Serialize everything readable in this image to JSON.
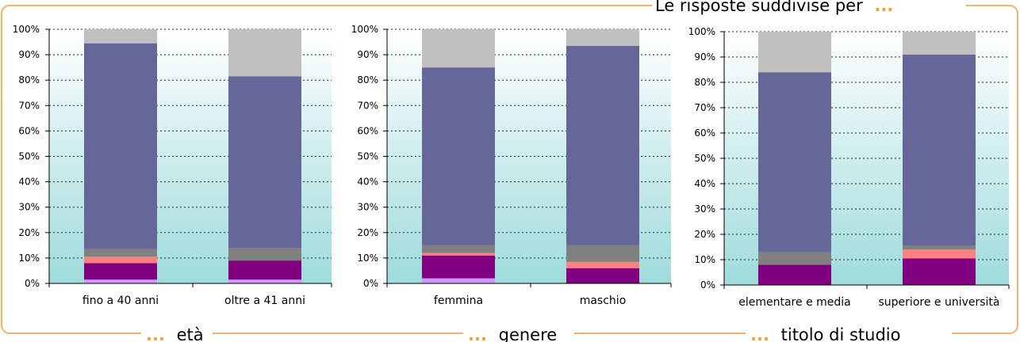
{
  "header": {
    "title_prefix": "Le risposte suddivise per",
    "title_dots": "..."
  },
  "footer": [
    {
      "dots": "...",
      "label": "età"
    },
    {
      "dots": "...",
      "label": "genere"
    },
    {
      "dots": "...",
      "label": "titolo di studio"
    }
  ],
  "colors": {
    "frame": "#f2b46a",
    "dots": "#f2a33a",
    "grid": "#222222",
    "plot_top": "#ffffff",
    "plot_bottom": "#9fdbdc"
  },
  "chart_data": [
    {
      "type": "bar",
      "stacked": true,
      "categories": [
        "fino a 40 anni",
        "oltre a 41 anni"
      ],
      "ylim": [
        0,
        100
      ],
      "yticks": [
        "0%",
        "10%",
        "20%",
        "30%",
        "40%",
        "50%",
        "60%",
        "70%",
        "80%",
        "90%",
        "100%"
      ],
      "grid": true,
      "series": [
        {
          "color": "#cc99ff",
          "values": [
            1.5,
            1.5
          ]
        },
        {
          "color": "#800080",
          "values": [
            6.5,
            7.5
          ]
        },
        {
          "color": "#ff8080",
          "values": [
            2.5,
            0
          ]
        },
        {
          "color": "#808080",
          "values": [
            3,
            5
          ]
        },
        {
          "color": "#666699",
          "values": [
            81,
            67.5
          ]
        },
        {
          "color": "#c0c0c0",
          "values": [
            5.5,
            18.5
          ]
        }
      ]
    },
    {
      "type": "bar",
      "stacked": true,
      "categories": [
        "femmina",
        "maschio"
      ],
      "ylim": [
        0,
        100
      ],
      "yticks": [
        "0%",
        "10%",
        "20%",
        "30%",
        "40%",
        "50%",
        "60%",
        "70%",
        "80%",
        "90%",
        "100%"
      ],
      "grid": true,
      "series": [
        {
          "color": "#cc99ff",
          "values": [
            2,
            0
          ]
        },
        {
          "color": "#800080",
          "values": [
            9,
            6
          ]
        },
        {
          "color": "#ff8080",
          "values": [
            1,
            2.5
          ]
        },
        {
          "color": "#808080",
          "values": [
            3,
            6.5
          ]
        },
        {
          "color": "#666699",
          "values": [
            70,
            78.5
          ]
        },
        {
          "color": "#c0c0c0",
          "values": [
            15,
            6.5
          ]
        }
      ]
    },
    {
      "type": "bar",
      "stacked": true,
      "categories": [
        "elementare e media",
        "superiore e università"
      ],
      "ylim": [
        0,
        100
      ],
      "yticks": [
        "0%",
        "10%",
        "20%",
        "30%",
        "40%",
        "50%",
        "60%",
        "70%",
        "80%",
        "90%",
        "100%"
      ],
      "grid": true,
      "series": [
        {
          "color": "#cc99ff",
          "values": [
            0,
            0
          ]
        },
        {
          "color": "#800080",
          "values": [
            8,
            10.5
          ]
        },
        {
          "color": "#ff8080",
          "values": [
            0,
            3.5
          ]
        },
        {
          "color": "#808080",
          "values": [
            5,
            1.5
          ]
        },
        {
          "color": "#666699",
          "values": [
            71,
            75.5
          ]
        },
        {
          "color": "#c0c0c0",
          "values": [
            16,
            9
          ]
        }
      ]
    }
  ]
}
